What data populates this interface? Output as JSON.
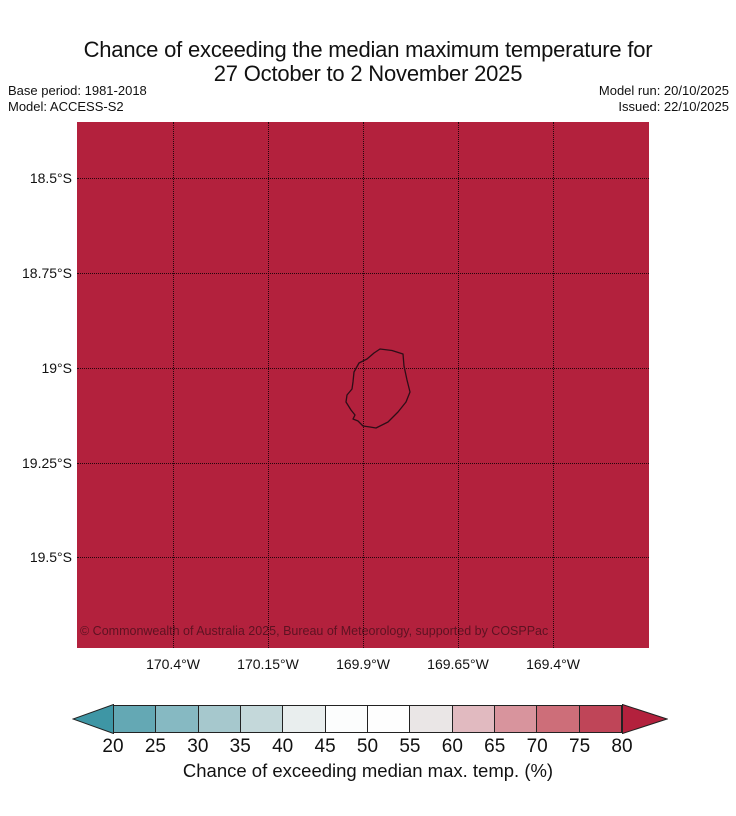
{
  "title": {
    "line1": "Chance of exceeding the median maximum temperature for",
    "line2": "27 October to 2 November 2025"
  },
  "metadata": {
    "base_period": "Base period: 1981-2018",
    "model": "Model: ACCESS-S2",
    "model_run": "Model run: 20/10/2025",
    "issued": "Issued: 22/10/2025"
  },
  "map": {
    "fill_color": "#b3213d",
    "gridline_color": "#000000",
    "island_outline_color": "#2d0d17",
    "y_tick_labels": [
      "18.5°S",
      "18.75°S",
      "19°S",
      "19.25°S",
      "19.5°S"
    ],
    "x_tick_labels": [
      "170.4°W",
      "170.15°W",
      "169.9°W",
      "169.65°W",
      "169.4°W"
    ],
    "attribution": "© Commonwealth of Australia 2025, Bureau of Meteorology, supported by COSPPac"
  },
  "colorbar": {
    "label": "Chance of exceeding median max. temp. (%)",
    "tick_labels": [
      "20",
      "25",
      "30",
      "35",
      "40",
      "45",
      "50",
      "55",
      "60",
      "65",
      "70",
      "75",
      "80"
    ],
    "segment_colors": [
      "#64a8b4",
      "#86b9c2",
      "#a6c8cd",
      "#c4d8da",
      "#e9eeee",
      "#fcfdfd",
      "#fefefe",
      "#eae6e6",
      "#e1bac0",
      "#d8949d",
      "#cd6e79",
      "#bf4558"
    ],
    "under_arrow_color": "#3e96a5",
    "over_arrow_color": "#b3213d",
    "border_color": "#222222"
  },
  "chart_data": {
    "type": "heatmap",
    "title": "Chance of exceeding the median maximum temperature for 27 October to 2 November 2025",
    "colorbar_label": "Chance of exceeding median max. temp. (%)",
    "colorbar_ticks": [
      20,
      25,
      30,
      35,
      40,
      45,
      50,
      55,
      60,
      65,
      70,
      75,
      80
    ],
    "colorbar_extend": "both",
    "lat_ticks_deg_S": [
      18.5,
      18.75,
      19.0,
      19.25,
      19.5
    ],
    "lon_ticks_deg_W": [
      170.4,
      170.15,
      169.9,
      169.65,
      169.4
    ],
    "field_summary": "Entire mapped region shaded the >80% class (uniform dark red)",
    "region_value_percent": ">80",
    "island_shown": "Niue (outline near 19°S, 169.9°W)",
    "grid_on": true
  }
}
